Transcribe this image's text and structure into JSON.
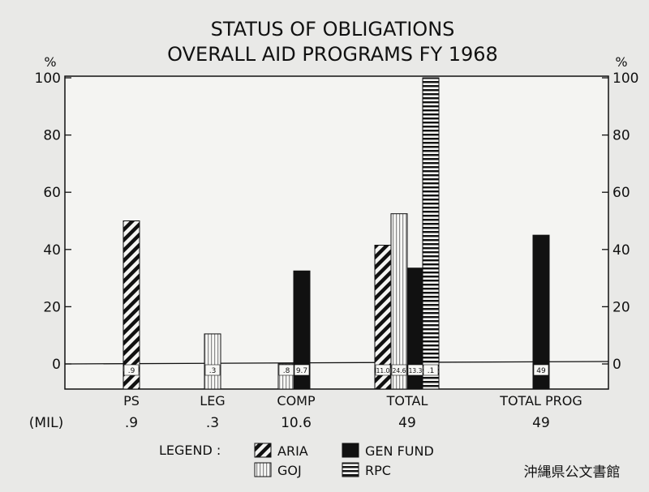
{
  "title_line1": "STATUS OF OBLIGATIONS",
  "title_line2": "OVERALL AID PROGRAMS FY 1968",
  "ylabel_left": "%",
  "ylabel_right": "%",
  "mil_label": "(MIL)",
  "legend_title": "LEGEND :",
  "stamp": "沖縄県公文書館",
  "colors": {
    "paper": "#e9e9e7",
    "plot": "#f4f4f2",
    "ink": "#111111"
  },
  "chart_data": {
    "type": "bar",
    "title": "STATUS OF OBLIGATIONS OVERALL AID PROGRAMS FY 1968",
    "ylabel": "%",
    "ylim": [
      0,
      100
    ],
    "yticks": [
      "0",
      "20",
      "40",
      "60",
      "80",
      "100"
    ],
    "grid": false,
    "legend_placement": "bottom",
    "categories": [
      "PS",
      "LEG",
      "COMP",
      "TOTAL",
      "TOTAL PROG"
    ],
    "mil_values": [
      ".9",
      ".3",
      "10.6",
      "49",
      "49"
    ],
    "legend": [
      {
        "key": "aria",
        "label": "ARIA",
        "pattern": "diagonal"
      },
      {
        "key": "gen",
        "label": "GEN FUND",
        "pattern": "solid"
      },
      {
        "key": "goj",
        "label": "GOJ",
        "pattern": "vertical"
      },
      {
        "key": "rpc",
        "label": "RPC",
        "pattern": "horizontal"
      }
    ],
    "bars": [
      {
        "category": "PS",
        "fund": "aria",
        "value": 50,
        "label": ".9"
      },
      {
        "category": "LEG",
        "fund": "goj",
        "value": 10.5,
        "label": ".3"
      },
      {
        "category": "COMP",
        "fund": "goj",
        "value": 0,
        "label": ".8"
      },
      {
        "category": "COMP",
        "fund": "gen",
        "value": 32.5,
        "label": "9.7"
      },
      {
        "category": "TOTAL",
        "fund": "aria",
        "value": 41.5,
        "label": "11.0"
      },
      {
        "category": "TOTAL",
        "fund": "goj",
        "value": 52.5,
        "label": "24.6"
      },
      {
        "category": "TOTAL",
        "fund": "gen",
        "value": 33.5,
        "label": "13.3"
      },
      {
        "category": "TOTAL",
        "fund": "rpc",
        "value": 100,
        "label": ".1"
      },
      {
        "category": "TOTAL PROG",
        "fund": "gen",
        "value": 45,
        "label": "49"
      }
    ]
  }
}
